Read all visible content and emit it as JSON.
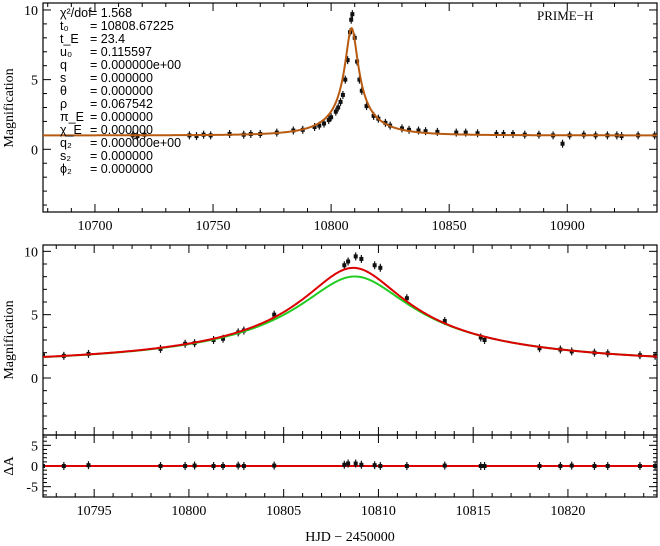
{
  "colors": {
    "model_primary": "#dd0000",
    "model_secondary": "#22cc22",
    "model_blend": "#b85a10",
    "data_points": "#111111"
  },
  "chart_data": [
    {
      "type": "scatter",
      "panel": "top",
      "label": "PRIME−H",
      "ylabel": "Magnification",
      "xlim": [
        10678,
        10938
      ],
      "ylim": [
        -4.5,
        10.5
      ],
      "xticks": [
        10700,
        10750,
        10800,
        10850,
        10900
      ],
      "yticks": [
        0,
        5,
        10
      ],
      "model": {
        "type": "pspl",
        "t0": 10808.67225,
        "tE": 23.4,
        "u0": 0.115597
      },
      "params": [
        {
          "name": "χ²/dof",
          "value": "= 1.568"
        },
        {
          "name": "t₀",
          "value": "= 10808.67225"
        },
        {
          "name": "t_E",
          "value": "= 23.4"
        },
        {
          "name": "u₀",
          "value": "= 0.115597"
        },
        {
          "name": "q",
          "value": "= 0.000000e+00"
        },
        {
          "name": "s",
          "value": "= 0.000000"
        },
        {
          "name": "θ",
          "value": "= 0.000000"
        },
        {
          "name": "ρ",
          "value": "= 0.067542"
        },
        {
          "name": "π_E",
          "value": "= 0.000000"
        },
        {
          "name": "χ_E",
          "value": "= 0.000000"
        },
        {
          "name": "q₂",
          "value": "= 0.000000e+00"
        },
        {
          "name": "s₂",
          "value": "= 0.000000"
        },
        {
          "name": "ϕ₂",
          "value": "= 0.000000"
        }
      ],
      "points": [
        [
          10716,
          1.0
        ],
        [
          10718,
          0.95
        ],
        [
          10721,
          1.05
        ],
        [
          10740,
          1.0
        ],
        [
          10743,
          0.95
        ],
        [
          10746,
          1.05
        ],
        [
          10749,
          1.0
        ],
        [
          10757,
          1.1
        ],
        [
          10763,
          1.05
        ],
        [
          10766,
          1.1
        ],
        [
          10770,
          1.1
        ],
        [
          10777,
          1.2
        ],
        [
          10784,
          1.35
        ],
        [
          10788,
          1.4
        ],
        [
          10793,
          1.6
        ],
        [
          10795,
          1.7
        ],
        [
          10797,
          1.85
        ],
        [
          10799,
          2.1
        ],
        [
          10800,
          2.3
        ],
        [
          10802,
          2.7
        ],
        [
          10803,
          3.0
        ],
        [
          10804,
          3.4
        ],
        [
          10805,
          3.9
        ],
        [
          10806,
          5.0
        ],
        [
          10807,
          6.4
        ],
        [
          10808,
          8.4
        ],
        [
          10808.5,
          9.3
        ],
        [
          10809,
          9.7
        ],
        [
          10810,
          8.0
        ],
        [
          10811,
          6.3
        ],
        [
          10812,
          5.0
        ],
        [
          10813,
          4.2
        ],
        [
          10815,
          3.1
        ],
        [
          10818,
          2.4
        ],
        [
          10820,
          2.2
        ],
        [
          10823,
          1.9
        ],
        [
          10825,
          1.7
        ],
        [
          10830,
          1.5
        ],
        [
          10833,
          1.4
        ],
        [
          10837,
          1.35
        ],
        [
          10840,
          1.3
        ],
        [
          10845,
          1.25
        ],
        [
          10853,
          1.2
        ],
        [
          10857,
          1.2
        ],
        [
          10862,
          1.15
        ],
        [
          10870,
          1.1
        ],
        [
          10873,
          1.1
        ],
        [
          10877,
          1.1
        ],
        [
          10882,
          1.05
        ],
        [
          10888,
          1.05
        ],
        [
          10894,
          1.0
        ],
        [
          10898,
          0.4
        ],
        [
          10901,
          1.0
        ],
        [
          10907,
          1.05
        ],
        [
          10912,
          1.0
        ],
        [
          10917,
          1.0
        ],
        [
          10921,
          1.0
        ],
        [
          10923,
          0.95
        ],
        [
          10930,
          1.0
        ],
        [
          10937,
          1.0
        ]
      ]
    },
    {
      "type": "scatter",
      "panel": "middle",
      "ylabel": "Magnification",
      "xlim": [
        10792.3,
        10824.7
      ],
      "ylim": [
        -4.5,
        10.5
      ],
      "yticks": [
        0,
        5,
        10
      ],
      "models": [
        {
          "name": "",
          "color": "#dd0000",
          "t0": 10808.67225,
          "tE": 23.4,
          "u0": 0.115597
        },
        {
          "name": "",
          "color": "#22cc22",
          "t0": 10808.75,
          "tE": 23.4,
          "u0": 0.1255
        }
      ],
      "points": [
        [
          10792.3,
          1.8
        ],
        [
          10793.4,
          1.75
        ],
        [
          10794.7,
          1.9
        ],
        [
          10798.5,
          2.3
        ],
        [
          10799.8,
          2.7
        ],
        [
          10800.3,
          2.75
        ],
        [
          10801.3,
          3.0
        ],
        [
          10801.8,
          3.1
        ],
        [
          10802.6,
          3.6
        ],
        [
          10802.9,
          3.75
        ],
        [
          10804.5,
          5.0
        ],
        [
          10808.2,
          8.9
        ],
        [
          10808.4,
          9.2
        ],
        [
          10808.8,
          9.6
        ],
        [
          10809.1,
          9.4
        ],
        [
          10809.8,
          8.9
        ],
        [
          10810.1,
          8.7
        ],
        [
          10811.5,
          6.3
        ],
        [
          10813.5,
          4.5
        ],
        [
          10815.4,
          3.2
        ],
        [
          10815.6,
          3.0
        ],
        [
          10818.5,
          2.35
        ],
        [
          10819.6,
          2.25
        ],
        [
          10820.2,
          2.1
        ],
        [
          10821.4,
          2.0
        ],
        [
          10822.1,
          1.95
        ],
        [
          10823.8,
          1.8
        ],
        [
          10824.6,
          1.75
        ]
      ]
    },
    {
      "type": "scatter",
      "panel": "bottom",
      "ylabel": "ΔA",
      "xlabel": "HJD − 2450000",
      "xlim": [
        10792.3,
        10824.7
      ],
      "ylim": [
        -7.5,
        7.5
      ],
      "xticks": [
        10795,
        10800,
        10805,
        10810,
        10815,
        10820
      ],
      "yticks": [
        -5,
        0,
        5
      ],
      "residual_line": 0,
      "points": [
        [
          10792.3,
          0
        ],
        [
          10793.4,
          0
        ],
        [
          10794.7,
          0.2
        ],
        [
          10798.5,
          0
        ],
        [
          10799.8,
          0
        ],
        [
          10800.3,
          0.1
        ],
        [
          10801.3,
          0
        ],
        [
          10801.8,
          0
        ],
        [
          10802.6,
          0.1
        ],
        [
          10802.9,
          0
        ],
        [
          10804.5,
          0.1
        ],
        [
          10808.2,
          0.3
        ],
        [
          10808.4,
          0.6
        ],
        [
          10808.8,
          0.6
        ],
        [
          10809.1,
          0.3
        ],
        [
          10809.8,
          0.2
        ],
        [
          10810.1,
          0
        ],
        [
          10811.5,
          0
        ],
        [
          10813.5,
          0.1
        ],
        [
          10815.4,
          0
        ],
        [
          10815.6,
          0
        ],
        [
          10818.5,
          0
        ],
        [
          10819.6,
          0
        ],
        [
          10820.2,
          0.1
        ],
        [
          10821.4,
          0
        ],
        [
          10822.1,
          0
        ],
        [
          10823.8,
          0
        ],
        [
          10824.6,
          0
        ]
      ]
    }
  ]
}
